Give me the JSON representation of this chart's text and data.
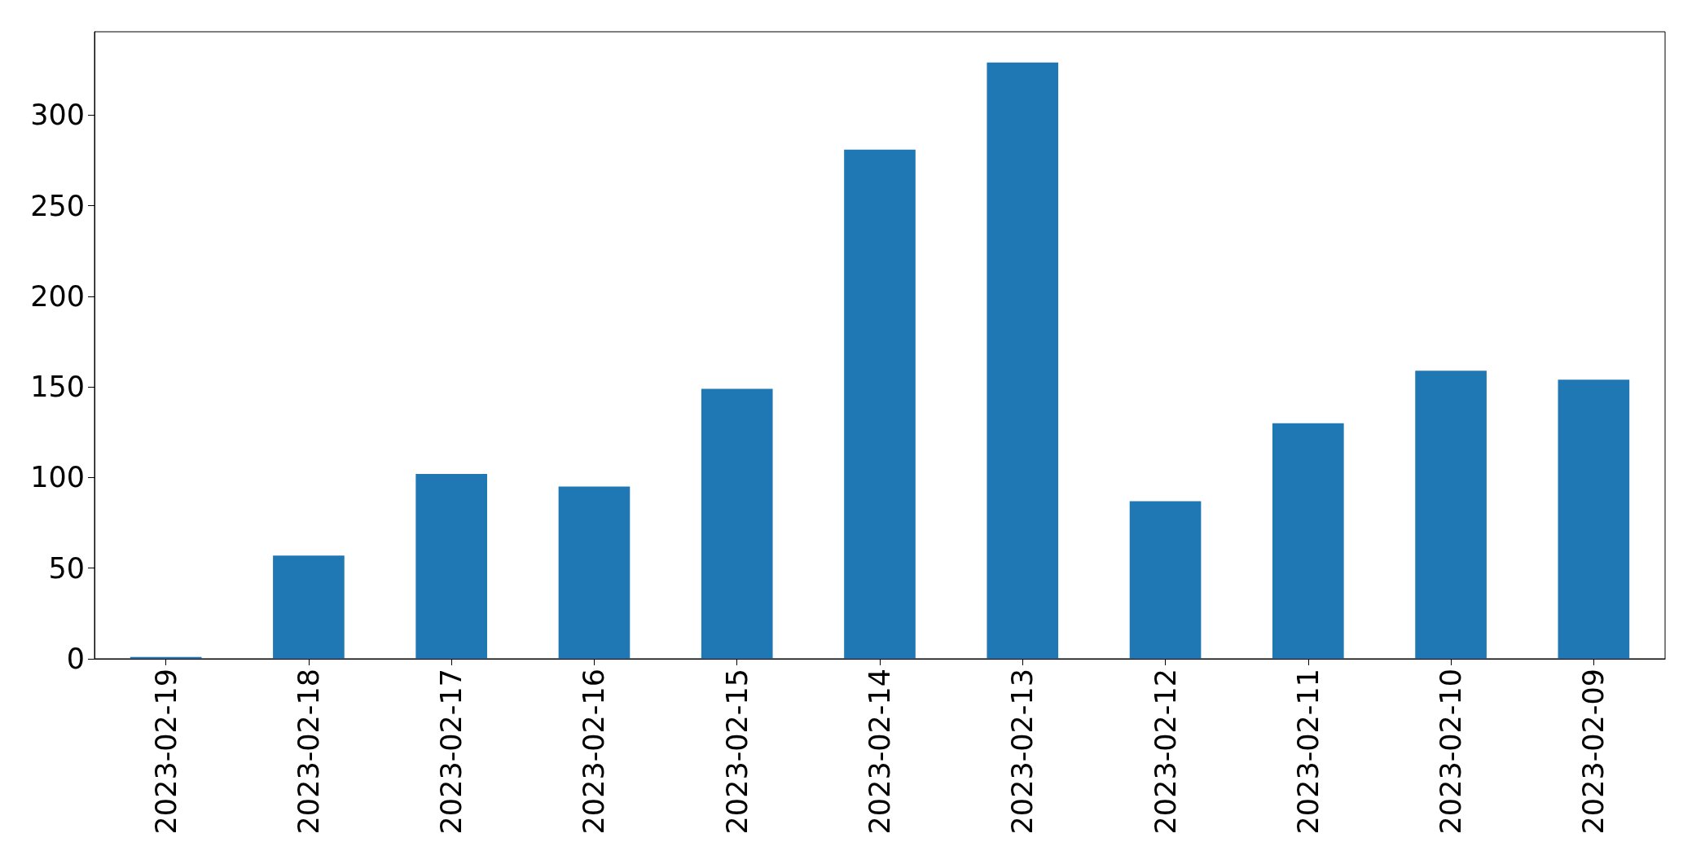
{
  "chart_data": {
    "type": "bar",
    "categories": [
      "2023-02-19",
      "2023-02-18",
      "2023-02-17",
      "2023-02-16",
      "2023-02-15",
      "2023-02-14",
      "2023-02-13",
      "2023-02-12",
      "2023-02-11",
      "2023-02-10",
      "2023-02-09"
    ],
    "values": [
      1,
      57,
      102,
      95,
      149,
      281,
      329,
      87,
      130,
      159,
      154
    ],
    "color": "#1f77b4",
    "ylim": [
      0,
      346
    ],
    "yticks": [
      0,
      50,
      100,
      150,
      200,
      250,
      300
    ],
    "grid": false
  }
}
